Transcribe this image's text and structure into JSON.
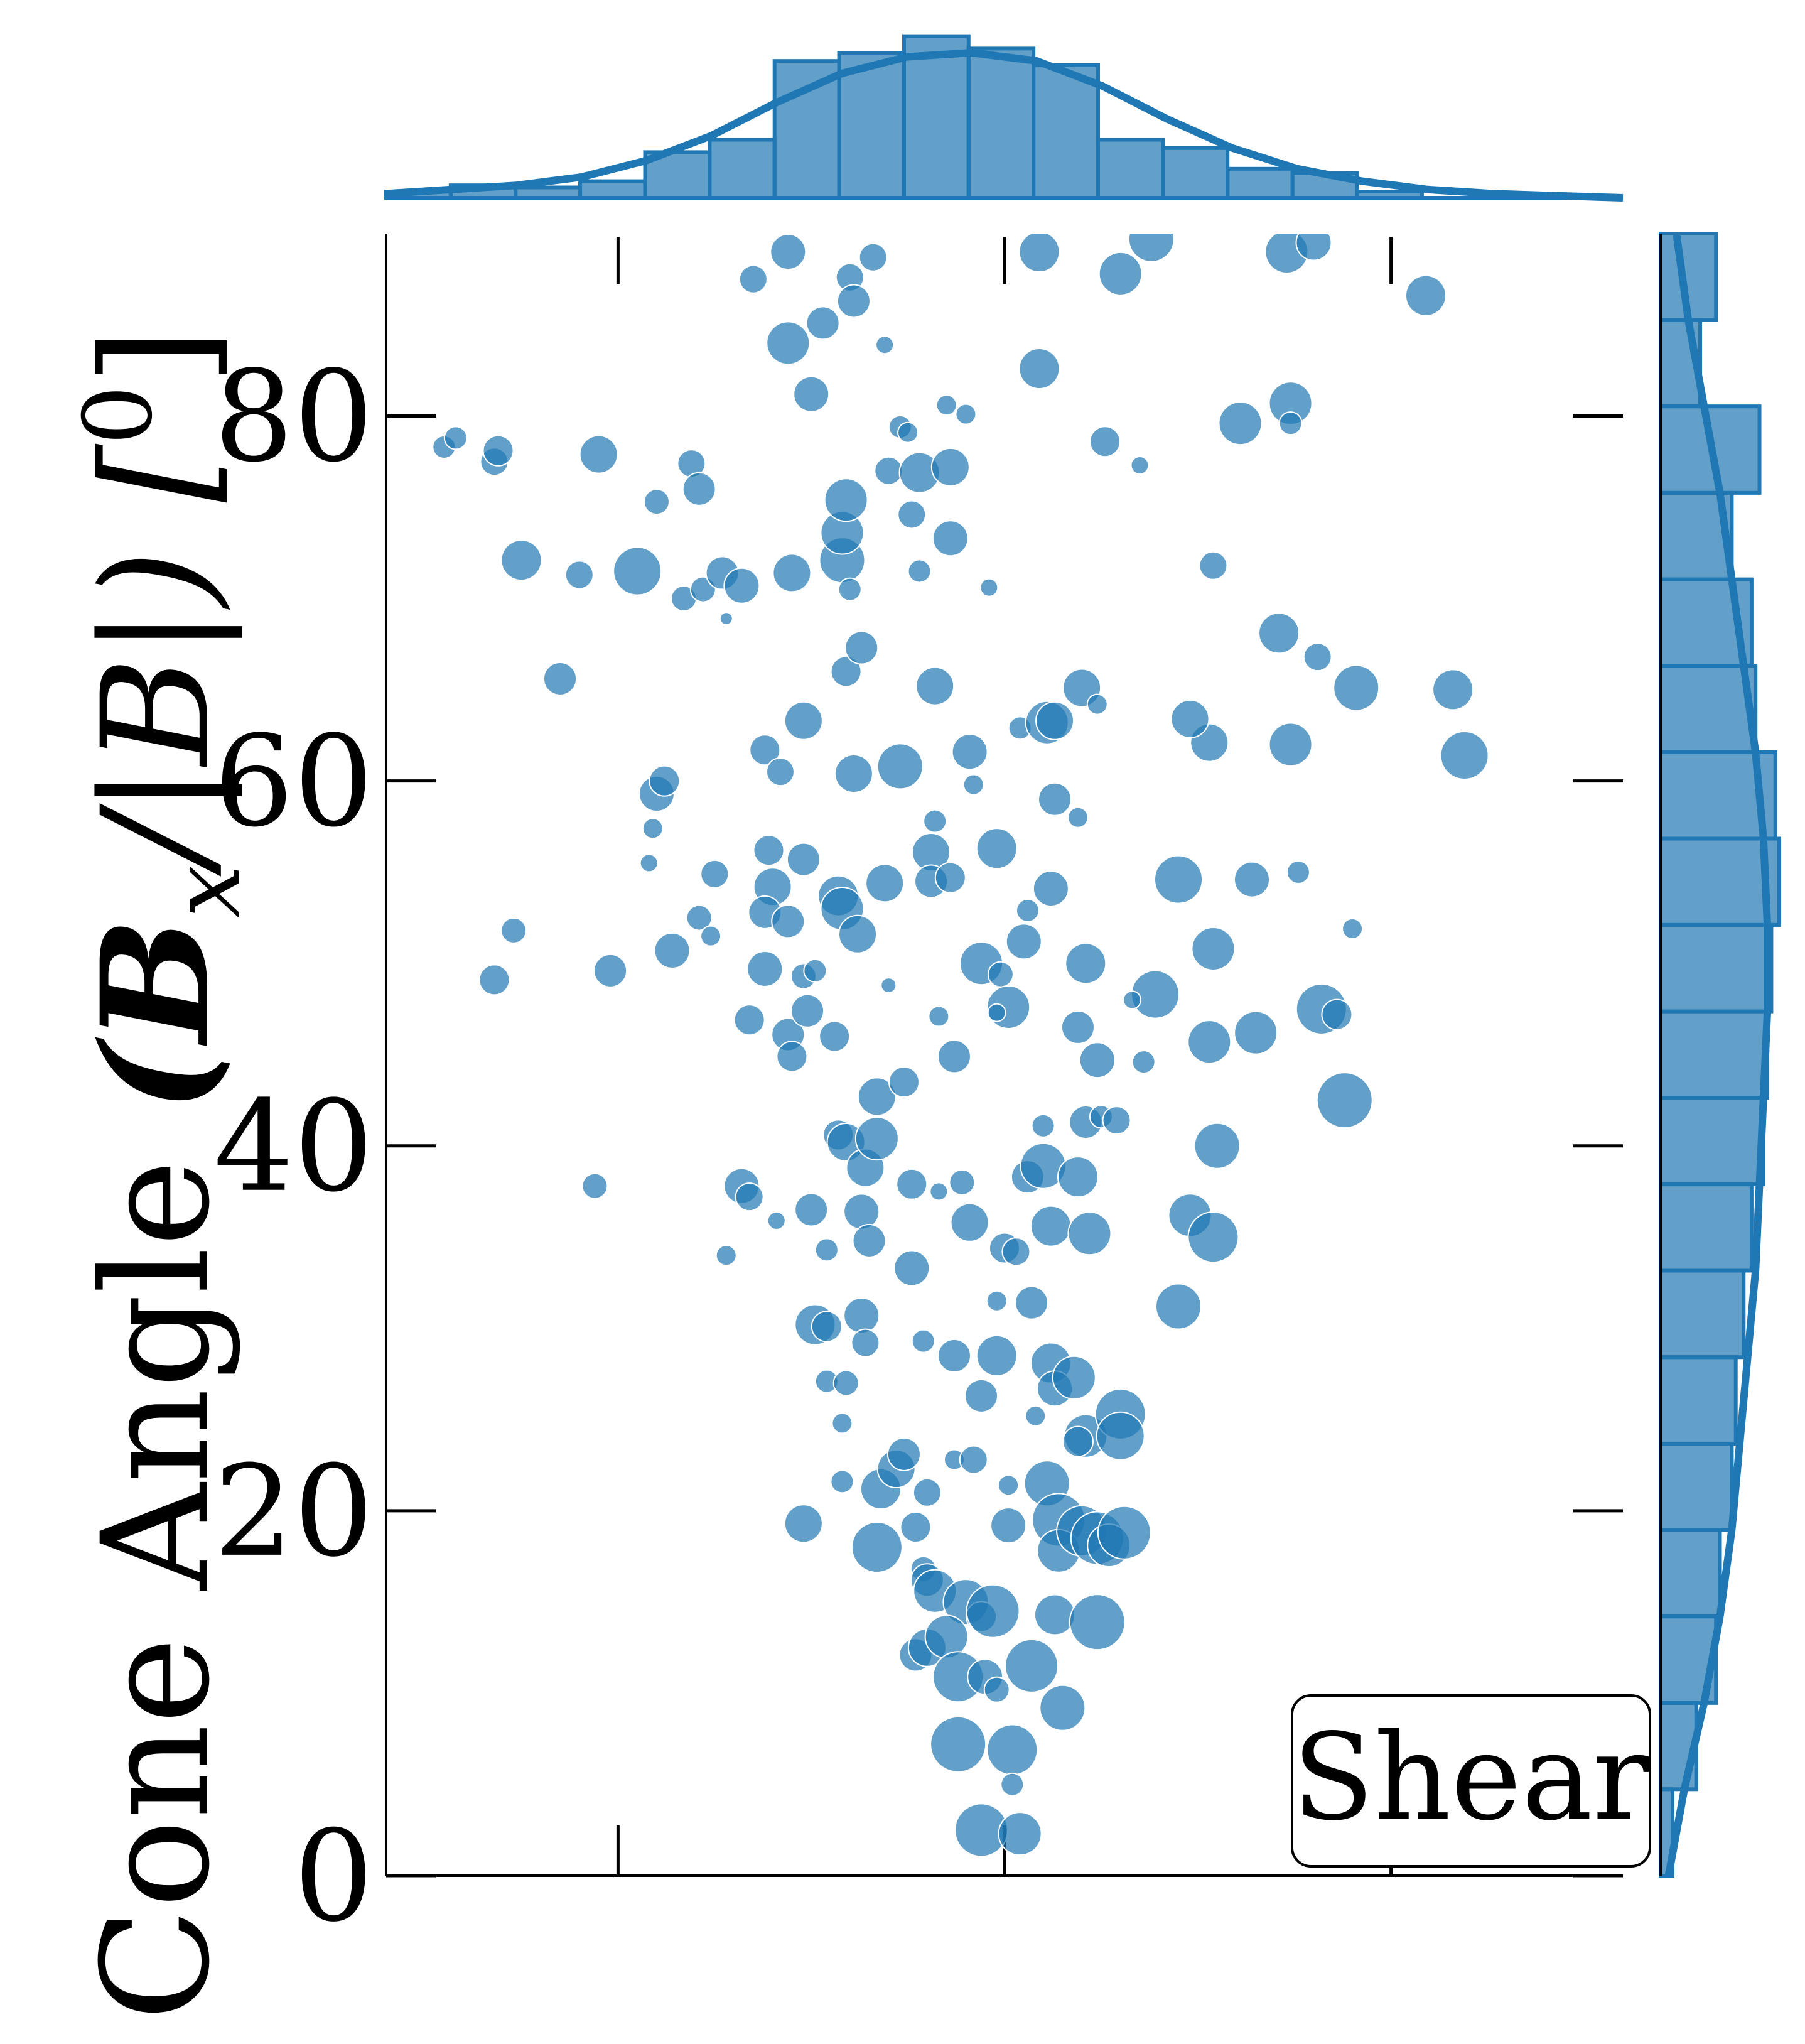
{
  "chart_data": {
    "type": "scatter",
    "ylabel_text": "Cone Angle ",
    "ylabel_math": "(B",
    "ylabel_math_sub": "x",
    "ylabel_math_tail": "/|B|) [",
    "ylabel_unit_sup": "0",
    "ylabel_close": "]",
    "xlabel": "",
    "ylim": [
      0,
      90
    ],
    "xlim": [
      -1.6,
      1.6
    ],
    "y_ticks": [
      0,
      20,
      40,
      60,
      80
    ],
    "y_tick_labels": [
      "0",
      "20",
      "40",
      "60",
      "80"
    ],
    "x_ticks": [
      -1,
      0,
      1
    ],
    "x_tick_labels": [],
    "legend_label": "Shear",
    "legend_position": "lower-right",
    "grid": false,
    "marker_color": "#1f77b4",
    "marker_alpha": 0.7,
    "points": [
      {
        "x": -1.45,
        "y": 78.3,
        "s": 18
      },
      {
        "x": -1.42,
        "y": 78.8,
        "s": 18
      },
      {
        "x": -1.32,
        "y": 77.5,
        "s": 22
      },
      {
        "x": -1.31,
        "y": 78.1,
        "s": 24
      },
      {
        "x": -1.05,
        "y": 77.9,
        "s": 30
      },
      {
        "x": -0.9,
        "y": 75.3,
        "s": 20
      },
      {
        "x": -0.81,
        "y": 77.4,
        "s": 22
      },
      {
        "x": -0.79,
        "y": 76.0,
        "s": 26
      },
      {
        "x": -1.25,
        "y": 72.1,
        "s": 32
      },
      {
        "x": -1.1,
        "y": 71.3,
        "s": 22
      },
      {
        "x": -0.95,
        "y": 71.5,
        "s": 38
      },
      {
        "x": -0.83,
        "y": 70.0,
        "s": 20
      },
      {
        "x": -0.78,
        "y": 70.5,
        "s": 20
      },
      {
        "x": -0.73,
        "y": 71.4,
        "s": 26
      },
      {
        "x": -0.72,
        "y": 68.9,
        "s": 10
      },
      {
        "x": -0.68,
        "y": 70.7,
        "s": 28
      },
      {
        "x": -0.55,
        "y": 71.4,
        "s": 30
      },
      {
        "x": -0.42,
        "y": 72.1,
        "s": 36
      },
      {
        "x": -0.42,
        "y": 73.6,
        "s": 34
      },
      {
        "x": -0.41,
        "y": 75.4,
        "s": 34
      },
      {
        "x": -0.4,
        "y": 70.5,
        "s": 18
      },
      {
        "x": -0.3,
        "y": 77.0,
        "s": 22
      },
      {
        "x": -0.27,
        "y": 79.4,
        "s": 18
      },
      {
        "x": -0.25,
        "y": 79.1,
        "s": 16
      },
      {
        "x": -0.22,
        "y": 76.9,
        "s": 32
      },
      {
        "x": -0.14,
        "y": 77.2,
        "s": 30
      },
      {
        "x": -0.15,
        "y": 80.6,
        "s": 16
      },
      {
        "x": -0.1,
        "y": 80.1,
        "s": 16
      },
      {
        "x": -0.24,
        "y": 74.6,
        "s": 22
      },
      {
        "x": -0.22,
        "y": 71.5,
        "s": 18
      },
      {
        "x": -0.14,
        "y": 73.3,
        "s": 28
      },
      {
        "x": -0.04,
        "y": 70.6,
        "s": 14
      },
      {
        "x": -0.65,
        "y": 87.5,
        "s": 22
      },
      {
        "x": -0.56,
        "y": 89.0,
        "s": 28
      },
      {
        "x": -0.4,
        "y": 87.6,
        "s": 22
      },
      {
        "x": -0.34,
        "y": 88.7,
        "s": 22
      },
      {
        "x": -0.47,
        "y": 85.1,
        "s": 26
      },
      {
        "x": -0.39,
        "y": 86.3,
        "s": 26
      },
      {
        "x": -0.56,
        "y": 84.0,
        "s": 34
      },
      {
        "x": -0.5,
        "y": 81.2,
        "s": 28
      },
      {
        "x": -0.31,
        "y": 83.9,
        "s": 14
      },
      {
        "x": 0.09,
        "y": 89.0,
        "s": 32
      },
      {
        "x": 0.3,
        "y": 87.8,
        "s": 34
      },
      {
        "x": 0.38,
        "y": 89.7,
        "s": 36
      },
      {
        "x": 0.73,
        "y": 89.0,
        "s": 34
      },
      {
        "x": 0.8,
        "y": 89.5,
        "s": 28
      },
      {
        "x": 1.09,
        "y": 86.6,
        "s": 32
      },
      {
        "x": 0.09,
        "y": 82.6,
        "s": 32
      },
      {
        "x": 0.26,
        "y": 78.6,
        "s": 24
      },
      {
        "x": 0.35,
        "y": 77.3,
        "s": 14
      },
      {
        "x": 0.61,
        "y": 79.6,
        "s": 34
      },
      {
        "x": 0.74,
        "y": 80.7,
        "s": 34
      },
      {
        "x": 0.74,
        "y": 79.6,
        "s": 18
      },
      {
        "x": 0.54,
        "y": 71.8,
        "s": 22
      },
      {
        "x": 0.71,
        "y": 68.1,
        "s": 32
      },
      {
        "x": 0.81,
        "y": 66.8,
        "s": 22
      },
      {
        "x": 0.91,
        "y": 65.1,
        "s": 36
      },
      {
        "x": 1.16,
        "y": 65.0,
        "s": 32
      },
      {
        "x": 1.19,
        "y": 61.4,
        "s": 38
      },
      {
        "x": 0.74,
        "y": 62.0,
        "s": 34
      },
      {
        "x": 0.53,
        "y": 62.1,
        "s": 30
      },
      {
        "x": 0.48,
        "y": 63.4,
        "s": 30
      },
      {
        "x": -1.15,
        "y": 65.6,
        "s": 26
      },
      {
        "x": -0.9,
        "y": 59.3,
        "s": 28
      },
      {
        "x": -0.88,
        "y": 60.0,
        "s": 24
      },
      {
        "x": -0.91,
        "y": 57.4,
        "s": 16
      },
      {
        "x": -0.92,
        "y": 55.5,
        "s": 14
      },
      {
        "x": -0.75,
        "y": 54.9,
        "s": 22
      },
      {
        "x": -0.62,
        "y": 61.7,
        "s": 24
      },
      {
        "x": -0.58,
        "y": 60.5,
        "s": 22
      },
      {
        "x": -0.52,
        "y": 63.3,
        "s": 30
      },
      {
        "x": -0.41,
        "y": 66.0,
        "s": 24
      },
      {
        "x": -0.37,
        "y": 67.3,
        "s": 26
      },
      {
        "x": -0.39,
        "y": 60.4,
        "s": 30
      },
      {
        "x": -0.27,
        "y": 60.8,
        "s": 36
      },
      {
        "x": -0.18,
        "y": 65.2,
        "s": 30
      },
      {
        "x": -0.09,
        "y": 61.6,
        "s": 28
      },
      {
        "x": -0.08,
        "y": 59.8,
        "s": 16
      },
      {
        "x": -0.18,
        "y": 57.8,
        "s": 18
      },
      {
        "x": -0.19,
        "y": 56.1,
        "s": 30
      },
      {
        "x": -0.19,
        "y": 54.5,
        "s": 26
      },
      {
        "x": -0.14,
        "y": 54.7,
        "s": 24
      },
      {
        "x": -0.02,
        "y": 56.3,
        "s": 32
      },
      {
        "x": 0.04,
        "y": 62.9,
        "s": 18
      },
      {
        "x": 0.11,
        "y": 63.2,
        "s": 34
      },
      {
        "x": 0.13,
        "y": 63.3,
        "s": 30
      },
      {
        "x": 0.2,
        "y": 65.1,
        "s": 30
      },
      {
        "x": 0.24,
        "y": 64.2,
        "s": 16
      },
      {
        "x": 0.13,
        "y": 59.0,
        "s": 26
      },
      {
        "x": 0.19,
        "y": 58.0,
        "s": 16
      },
      {
        "x": 0.12,
        "y": 54.1,
        "s": 28
      },
      {
        "x": 0.06,
        "y": 52.9,
        "s": 18
      },
      {
        "x": 0.05,
        "y": 51.2,
        "s": 28
      },
      {
        "x": -0.61,
        "y": 56.2,
        "s": 24
      },
      {
        "x": -0.6,
        "y": 54.2,
        "s": 30
      },
      {
        "x": -0.52,
        "y": 55.7,
        "s": 26
      },
      {
        "x": -0.62,
        "y": 52.8,
        "s": 26
      },
      {
        "x": -0.56,
        "y": 52.3,
        "s": 26
      },
      {
        "x": -0.43,
        "y": 53.7,
        "s": 32
      },
      {
        "x": -0.42,
        "y": 53.0,
        "s": 34
      },
      {
        "x": -0.38,
        "y": 51.6,
        "s": 30
      },
      {
        "x": -0.31,
        "y": 54.4,
        "s": 30
      },
      {
        "x": -0.79,
        "y": 52.5,
        "s": 20
      },
      {
        "x": -0.76,
        "y": 51.5,
        "s": 16
      },
      {
        "x": -0.86,
        "y": 50.7,
        "s": 28
      },
      {
        "x": -1.02,
        "y": 49.6,
        "s": 26
      },
      {
        "x": -1.27,
        "y": 51.8,
        "s": 20
      },
      {
        "x": -1.32,
        "y": 49.1,
        "s": 24
      },
      {
        "x": -0.62,
        "y": 49.7,
        "s": 28
      },
      {
        "x": -0.52,
        "y": 49.3,
        "s": 20
      },
      {
        "x": -0.49,
        "y": 49.6,
        "s": 18
      },
      {
        "x": -0.66,
        "y": 46.9,
        "s": 24
      },
      {
        "x": -0.56,
        "y": 46.1,
        "s": 26
      },
      {
        "x": -0.51,
        "y": 47.4,
        "s": 26
      },
      {
        "x": -0.55,
        "y": 44.9,
        "s": 24
      },
      {
        "x": -0.44,
        "y": 46.0,
        "s": 24
      },
      {
        "x": -0.3,
        "y": 48.8,
        "s": 12
      },
      {
        "x": -0.17,
        "y": 47.1,
        "s": 16
      },
      {
        "x": -0.13,
        "y": 44.9,
        "s": 26
      },
      {
        "x": -0.06,
        "y": 50.0,
        "s": 34
      },
      {
        "x": -0.01,
        "y": 49.4,
        "s": 20
      },
      {
        "x": 0.01,
        "y": 47.6,
        "s": 34
      },
      {
        "x": -0.02,
        "y": 47.3,
        "s": 14
      },
      {
        "x": 0.21,
        "y": 50.0,
        "s": 32
      },
      {
        "x": 0.39,
        "y": 48.3,
        "s": 38
      },
      {
        "x": 0.33,
        "y": 48.0,
        "s": 14
      },
      {
        "x": 0.54,
        "y": 50.8,
        "s": 34
      },
      {
        "x": 0.64,
        "y": 54.6,
        "s": 28
      },
      {
        "x": 0.76,
        "y": 55.0,
        "s": 18
      },
      {
        "x": 0.45,
        "y": 54.6,
        "s": 38
      },
      {
        "x": 0.9,
        "y": 51.9,
        "s": 16
      },
      {
        "x": 0.82,
        "y": 47.5,
        "s": 40
      },
      {
        "x": 0.86,
        "y": 47.2,
        "s": 24
      },
      {
        "x": 0.53,
        "y": 45.7,
        "s": 34
      },
      {
        "x": 0.65,
        "y": 46.2,
        "s": 34
      },
      {
        "x": 0.36,
        "y": 44.6,
        "s": 18
      },
      {
        "x": 0.88,
        "y": 42.5,
        "s": 44
      },
      {
        "x": 0.19,
        "y": 46.5,
        "s": 26
      },
      {
        "x": 0.24,
        "y": 44.7,
        "s": 28
      },
      {
        "x": -1.06,
        "y": 37.8,
        "s": 20
      },
      {
        "x": -0.68,
        "y": 37.8,
        "s": 28
      },
      {
        "x": -0.66,
        "y": 37.2,
        "s": 22
      },
      {
        "x": -0.59,
        "y": 35.9,
        "s": 14
      },
      {
        "x": -0.72,
        "y": 34.0,
        "s": 16
      },
      {
        "x": -0.5,
        "y": 36.5,
        "s": 26
      },
      {
        "x": -0.46,
        "y": 34.3,
        "s": 18
      },
      {
        "x": -0.43,
        "y": 40.6,
        "s": 24
      },
      {
        "x": -0.41,
        "y": 40.2,
        "s": 30
      },
      {
        "x": -0.36,
        "y": 38.8,
        "s": 30
      },
      {
        "x": -0.37,
        "y": 36.4,
        "s": 28
      },
      {
        "x": -0.35,
        "y": 34.8,
        "s": 26
      },
      {
        "x": -0.33,
        "y": 40.4,
        "s": 34
      },
      {
        "x": -0.33,
        "y": 42.7,
        "s": 30
      },
      {
        "x": -0.26,
        "y": 43.5,
        "s": 24
      },
      {
        "x": -0.24,
        "y": 37.9,
        "s": 24
      },
      {
        "x": -0.17,
        "y": 37.5,
        "s": 14
      },
      {
        "x": -0.11,
        "y": 38.0,
        "s": 20
      },
      {
        "x": -0.24,
        "y": 33.3,
        "s": 28
      },
      {
        "x": -0.09,
        "y": 35.8,
        "s": 30
      },
      {
        "x": 0.0,
        "y": 34.4,
        "s": 24
      },
      {
        "x": 0.03,
        "y": 34.2,
        "s": 22
      },
      {
        "x": 0.06,
        "y": 38.3,
        "s": 26
      },
      {
        "x": 0.1,
        "y": 38.9,
        "s": 36
      },
      {
        "x": 0.12,
        "y": 35.6,
        "s": 32
      },
      {
        "x": 0.19,
        "y": 38.3,
        "s": 32
      },
      {
        "x": 0.22,
        "y": 35.2,
        "s": 34
      },
      {
        "x": 0.1,
        "y": 41.1,
        "s": 18
      },
      {
        "x": 0.21,
        "y": 41.3,
        "s": 26
      },
      {
        "x": 0.25,
        "y": 41.6,
        "s": 18
      },
      {
        "x": 0.29,
        "y": 41.4,
        "s": 22
      },
      {
        "x": 0.55,
        "y": 40.0,
        "s": 36
      },
      {
        "x": 0.48,
        "y": 36.2,
        "s": 34
      },
      {
        "x": 0.54,
        "y": 35.0,
        "s": 40
      },
      {
        "x": 0.45,
        "y": 31.2,
        "s": 36
      },
      {
        "x": -0.49,
        "y": 30.2,
        "s": 32
      },
      {
        "x": -0.46,
        "y": 30.1,
        "s": 24
      },
      {
        "x": -0.37,
        "y": 30.7,
        "s": 28
      },
      {
        "x": -0.36,
        "y": 29.2,
        "s": 22
      },
      {
        "x": -0.21,
        "y": 29.3,
        "s": 18
      },
      {
        "x": -0.46,
        "y": 27.1,
        "s": 18
      },
      {
        "x": -0.41,
        "y": 27.0,
        "s": 20
      },
      {
        "x": -0.42,
        "y": 24.8,
        "s": 16
      },
      {
        "x": -0.13,
        "y": 28.5,
        "s": 26
      },
      {
        "x": -0.02,
        "y": 28.5,
        "s": 32
      },
      {
        "x": -0.06,
        "y": 26.3,
        "s": 26
      },
      {
        "x": -0.02,
        "y": 31.5,
        "s": 16
      },
      {
        "x": 0.07,
        "y": 31.4,
        "s": 26
      },
      {
        "x": 0.12,
        "y": 28.1,
        "s": 32
      },
      {
        "x": 0.13,
        "y": 26.7,
        "s": 28
      },
      {
        "x": 0.18,
        "y": 27.3,
        "s": 34
      },
      {
        "x": 0.21,
        "y": 24.1,
        "s": 34
      },
      {
        "x": 0.19,
        "y": 23.8,
        "s": 24
      },
      {
        "x": 0.3,
        "y": 25.3,
        "s": 40
      },
      {
        "x": 0.3,
        "y": 24.1,
        "s": 38
      },
      {
        "x": 0.08,
        "y": 25.2,
        "s": 16
      },
      {
        "x": -0.42,
        "y": 21.6,
        "s": 18
      },
      {
        "x": -0.32,
        "y": 21.2,
        "s": 32
      },
      {
        "x": -0.28,
        "y": 22.3,
        "s": 30
      },
      {
        "x": -0.26,
        "y": 23.1,
        "s": 26
      },
      {
        "x": -0.2,
        "y": 21.0,
        "s": 22
      },
      {
        "x": -0.13,
        "y": 22.8,
        "s": 16
      },
      {
        "x": -0.08,
        "y": 22.8,
        "s": 22
      },
      {
        "x": -0.52,
        "y": 19.3,
        "s": 30
      },
      {
        "x": -0.33,
        "y": 18.0,
        "s": 40
      },
      {
        "x": -0.23,
        "y": 19.1,
        "s": 24
      },
      {
        "x": -0.21,
        "y": 16.8,
        "s": 20
      },
      {
        "x": -0.2,
        "y": 16.2,
        "s": 26
      },
      {
        "x": -0.18,
        "y": 15.6,
        "s": 34
      },
      {
        "x": -0.1,
        "y": 15.0,
        "s": 36
      },
      {
        "x": -0.06,
        "y": 14.2,
        "s": 24
      },
      {
        "x": -0.03,
        "y": 14.5,
        "s": 42
      },
      {
        "x": 0.01,
        "y": 21.4,
        "s": 16
      },
      {
        "x": 0.01,
        "y": 19.2,
        "s": 28
      },
      {
        "x": 0.11,
        "y": 21.5,
        "s": 36
      },
      {
        "x": 0.14,
        "y": 19.5,
        "s": 42
      },
      {
        "x": 0.14,
        "y": 17.8,
        "s": 34
      },
      {
        "x": 0.2,
        "y": 18.9,
        "s": 40
      },
      {
        "x": 0.24,
        "y": 18.5,
        "s": 42
      },
      {
        "x": 0.27,
        "y": 18.1,
        "s": 34
      },
      {
        "x": 0.31,
        "y": 18.8,
        "s": 42
      },
      {
        "x": 0.13,
        "y": 14.3,
        "s": 32
      },
      {
        "x": 0.24,
        "y": 13.9,
        "s": 44
      },
      {
        "x": -0.23,
        "y": 12.1,
        "s": 26
      },
      {
        "x": -0.2,
        "y": 12.5,
        "s": 30
      },
      {
        "x": -0.15,
        "y": 13.1,
        "s": 34
      },
      {
        "x": -0.12,
        "y": 10.9,
        "s": 40
      },
      {
        "x": -0.05,
        "y": 10.9,
        "s": 28
      },
      {
        "x": -0.02,
        "y": 10.2,
        "s": 20
      },
      {
        "x": 0.07,
        "y": 11.5,
        "s": 42
      },
      {
        "x": 0.15,
        "y": 9.2,
        "s": 36
      },
      {
        "x": -0.12,
        "y": 7.2,
        "s": 44
      },
      {
        "x": 0.02,
        "y": 6.9,
        "s": 40
      },
      {
        "x": 0.02,
        "y": 5.0,
        "s": 18
      },
      {
        "x": -0.06,
        "y": 2.5,
        "s": 42
      },
      {
        "x": 0.04,
        "y": 2.3,
        "s": 34
      }
    ],
    "top_hist": {
      "bins": [
        -1.6,
        -1.433,
        -1.265,
        -1.098,
        -0.93,
        -0.763,
        -0.595,
        -0.428,
        -0.26,
        -0.093,
        0.075,
        0.242,
        0.41,
        0.577,
        0.745,
        0.912,
        1.08,
        1.247,
        1.415,
        1.6
      ],
      "counts": [
        3,
        6,
        5,
        8,
        22,
        28,
        66,
        70,
        78,
        72,
        64,
        28,
        24,
        14,
        12,
        3,
        0,
        0,
        0
      ],
      "kde": [
        2,
        4,
        6,
        10,
        18,
        30,
        46,
        60,
        68,
        70,
        66,
        54,
        38,
        24,
        14,
        8,
        4,
        2,
        1,
        0
      ]
    },
    "right_hist": {
      "bins": [
        0,
        4.74,
        9.47,
        14.21,
        18.95,
        23.68,
        28.42,
        33.16,
        37.89,
        42.63,
        47.37,
        52.11,
        56.84,
        61.58,
        66.32,
        71.05,
        75.79,
        80.53,
        85.26,
        90
      ],
      "counts": [
        3,
        9,
        14,
        15,
        18,
        19,
        21,
        23,
        26,
        27,
        28,
        30,
        29,
        24,
        23,
        18,
        25,
        10,
        14
      ],
      "kde": [
        2,
        6,
        11,
        15,
        18,
        20,
        22,
        24,
        25,
        26,
        27,
        27,
        26,
        24,
        21,
        18,
        15,
        11,
        7,
        4
      ]
    }
  }
}
